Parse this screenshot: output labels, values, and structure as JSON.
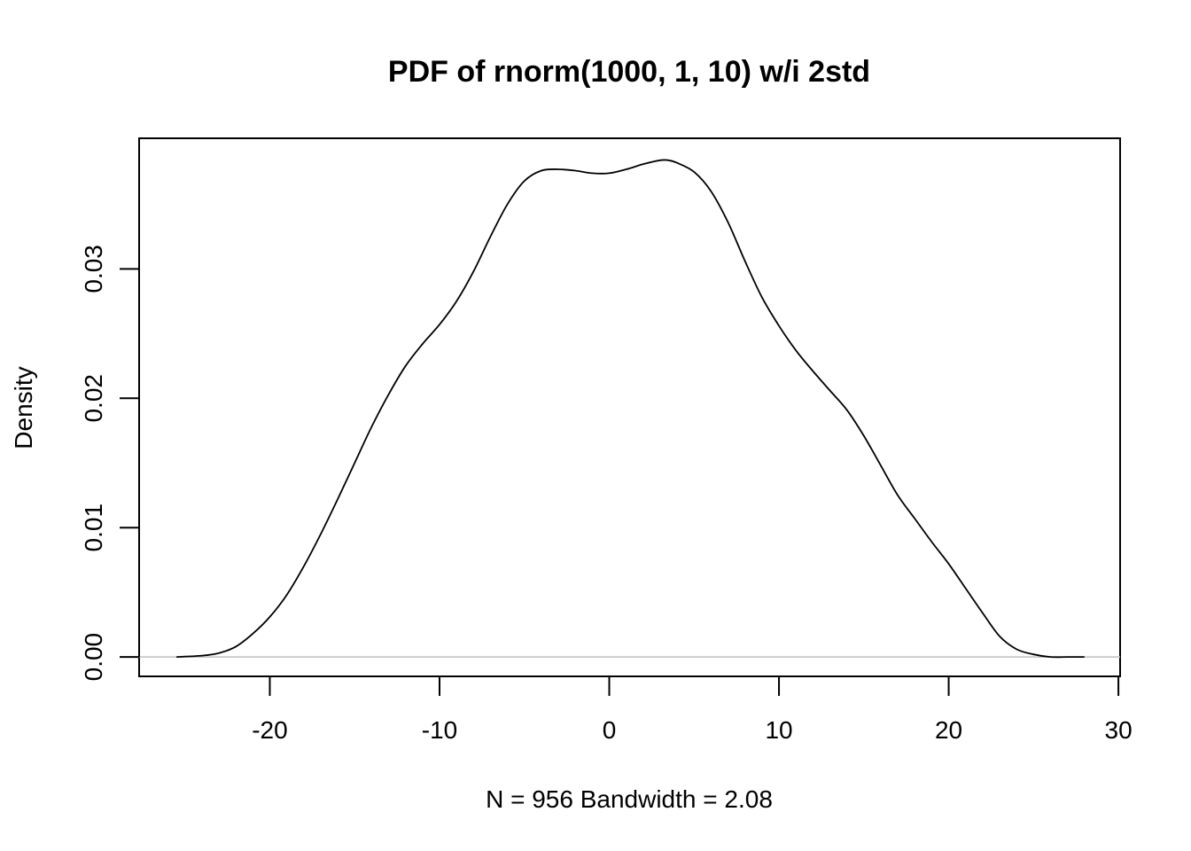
{
  "chart_data": {
    "type": "line",
    "title": "PDF of rnorm(1000, 1, 10) w/i 2std",
    "xlabel": "N = 956   Bandwidth = 2.08",
    "ylabel": "Density",
    "xlim": [
      -27.7,
      30.1
    ],
    "ylim": [
      -0.0015,
      0.0401
    ],
    "xticks": [
      -20,
      -10,
      0,
      10,
      20,
      30
    ],
    "xtick_labels": [
      "-20",
      "-10",
      "0",
      "10",
      "20",
      "30"
    ],
    "yticks": [
      0.0,
      0.01,
      0.02,
      0.03
    ],
    "ytick_labels": [
      "0.00",
      "0.01",
      "0.02",
      "0.03"
    ],
    "baseline": 0,
    "grid": false,
    "legend": false,
    "series": [
      {
        "color": "#000000",
        "x": [
          -25.5,
          -24,
          -23,
          -22,
          -21,
          -20,
          -19,
          -18,
          -17,
          -16,
          -15,
          -14,
          -13,
          -12,
          -11,
          -10,
          -9,
          -8,
          -7,
          -6,
          -5,
          -4,
          -3,
          -2,
          -1,
          0,
          1,
          2,
          3,
          3.5,
          4,
          5,
          6,
          7,
          8,
          9,
          10,
          11,
          12,
          13,
          14,
          15,
          16,
          17,
          18,
          19,
          20,
          21,
          22,
          23,
          24,
          25,
          26,
          27,
          28
        ],
        "y": [
          0.0,
          0.0001,
          0.0003,
          0.0008,
          0.0018,
          0.0031,
          0.0048,
          0.007,
          0.0095,
          0.0122,
          0.015,
          0.0178,
          0.0203,
          0.0225,
          0.0242,
          0.0257,
          0.0275,
          0.0298,
          0.0325,
          0.035,
          0.0368,
          0.0376,
          0.0377,
          0.0376,
          0.0374,
          0.0374,
          0.0377,
          0.0381,
          0.0384,
          0.0384,
          0.0382,
          0.0375,
          0.036,
          0.0336,
          0.0306,
          0.0278,
          0.0256,
          0.0237,
          0.0221,
          0.0206,
          0.0191,
          0.0171,
          0.0148,
          0.0125,
          0.0107,
          0.0089,
          0.0072,
          0.0053,
          0.0034,
          0.0016,
          0.0006,
          0.0002,
          0.0,
          0.0,
          0.0
        ]
      }
    ]
  }
}
